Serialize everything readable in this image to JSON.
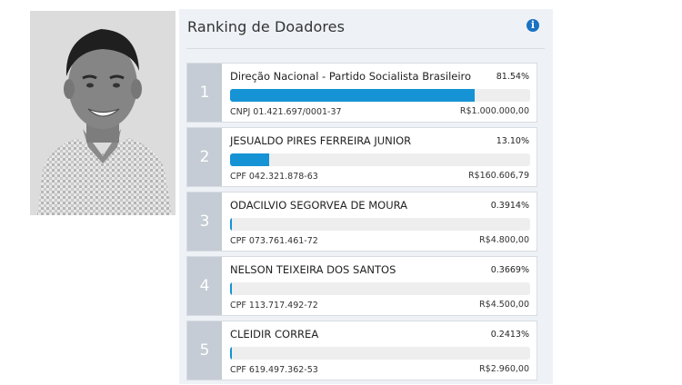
{
  "panel": {
    "title": "Ranking de Doadores",
    "info_icon": "info-circle-icon",
    "accent_color": "#1593d4"
  },
  "ranking": [
    {
      "rank": "1",
      "name": "Direção Nacional - Partido Socialista Brasileiro",
      "percent": "81.54%",
      "share": 0.8154,
      "doc": "CNPJ 01.421.697/0001-37",
      "amount": "R$1.000.000,00"
    },
    {
      "rank": "2",
      "name": "JESUALDO PIRES FERREIRA JUNIOR",
      "percent": "13.10%",
      "share": 0.131,
      "doc": "CPF 042.321.878-63",
      "amount": "R$160.606,79"
    },
    {
      "rank": "3",
      "name": "ODACILVIO SEGORVEA DE MOURA",
      "percent": "0.3914%",
      "share": 0.003914,
      "doc": "CPF 073.761.461-72",
      "amount": "R$4.800,00"
    },
    {
      "rank": "4",
      "name": "NELSON TEIXEIRA DOS SANTOS",
      "percent": "0.3669%",
      "share": 0.003669,
      "doc": "CPF 113.717.492-72",
      "amount": "R$4.500,00"
    },
    {
      "rank": "5",
      "name": "CLEIDIR CORREA",
      "percent": "0.2413%",
      "share": 0.002413,
      "doc": "CPF 619.497.362-53",
      "amount": "R$2.960,00"
    }
  ]
}
